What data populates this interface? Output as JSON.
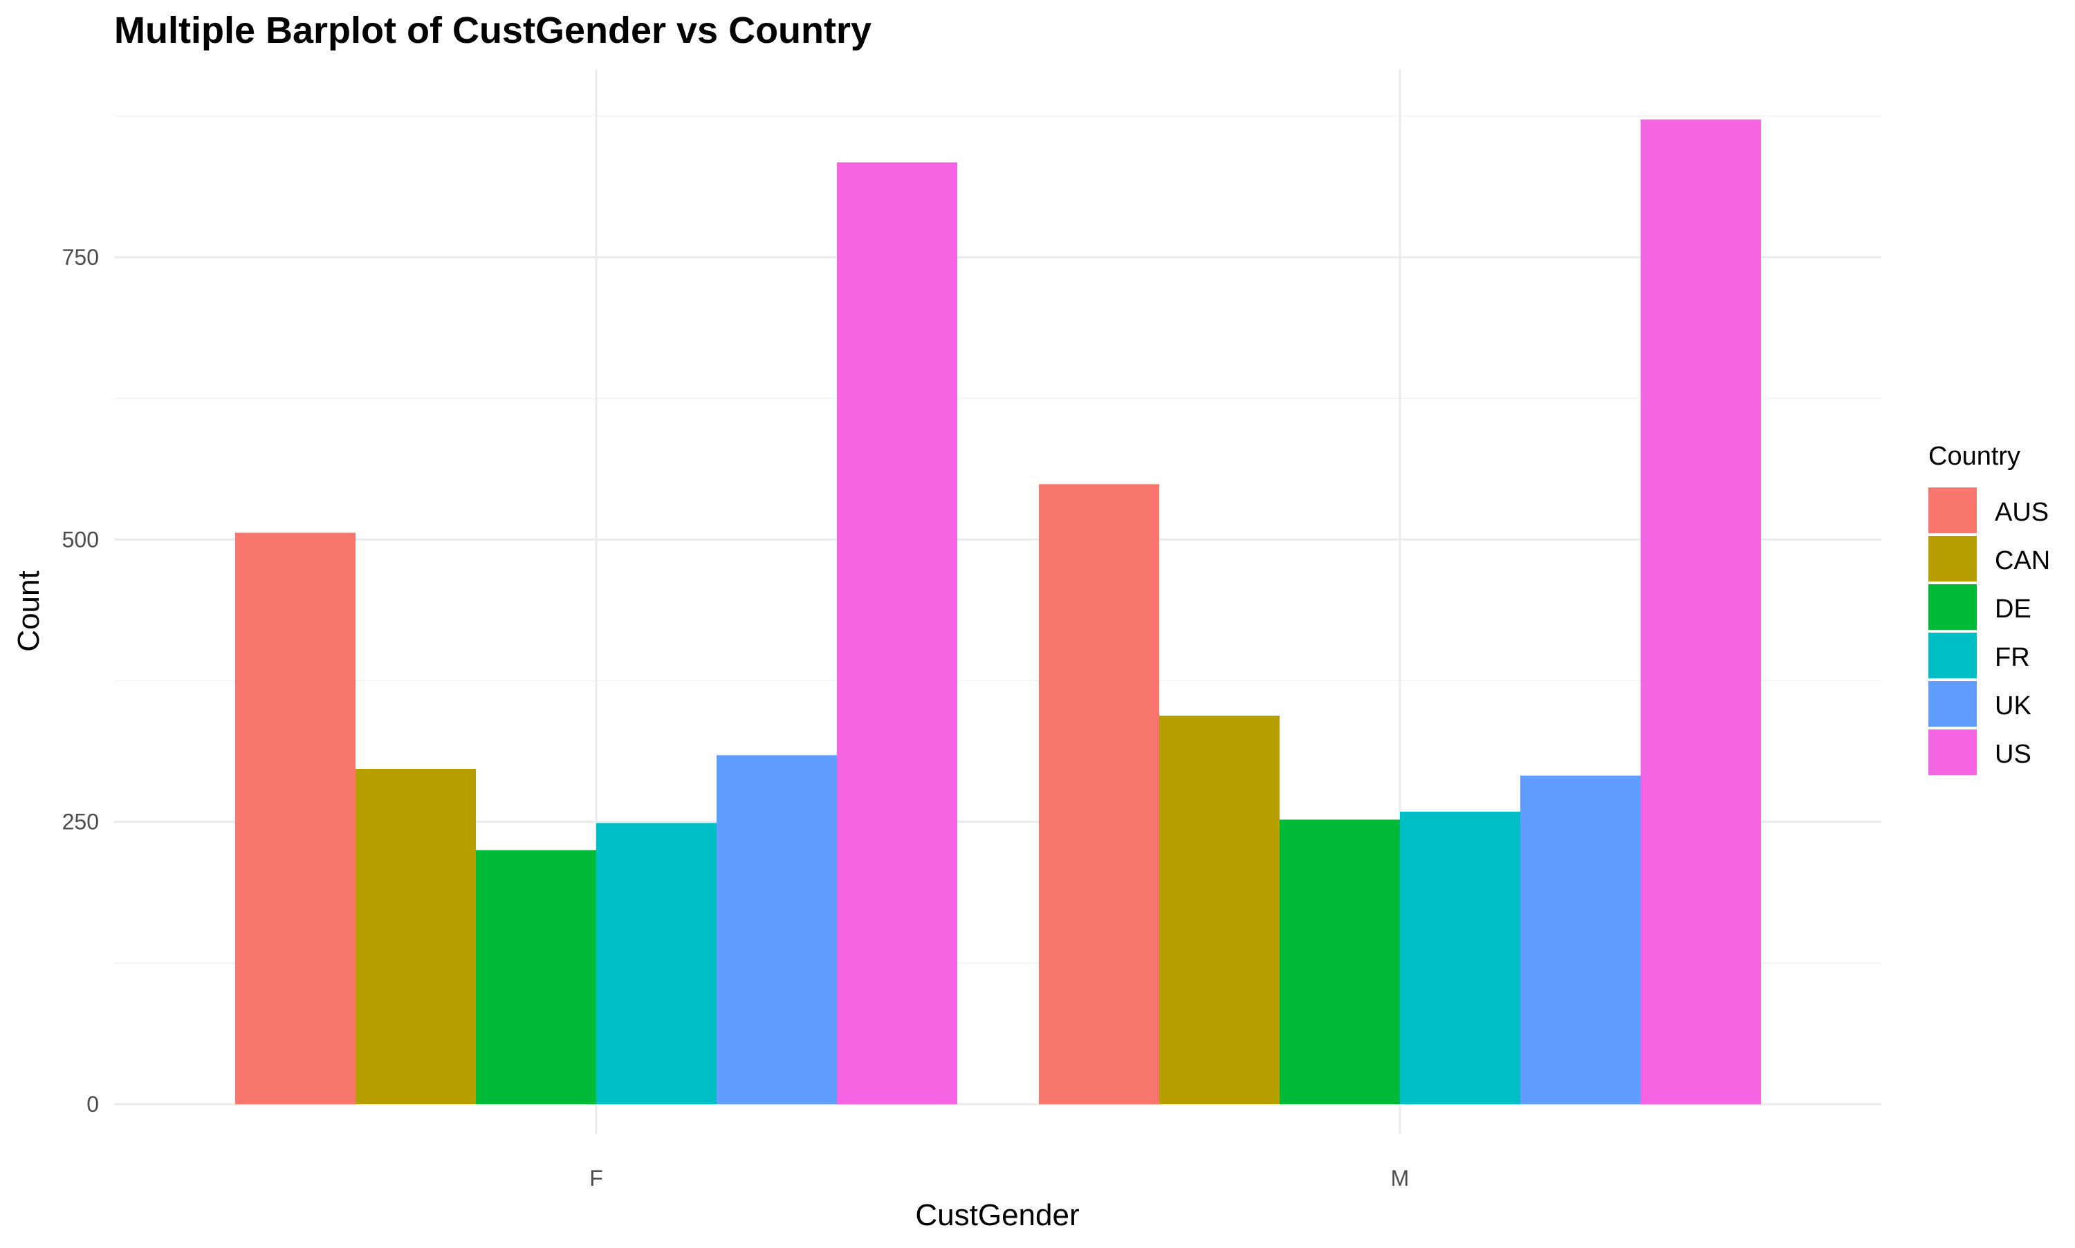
{
  "chart_data": {
    "type": "bar",
    "title": "Multiple Barplot of CustGender vs Country",
    "xlabel": "CustGender",
    "ylabel": "Count",
    "categories": [
      "F",
      "M"
    ],
    "ylim": [
      0,
      875
    ],
    "yticks": [
      0,
      250,
      500,
      750
    ],
    "ytick_labels": [
      "0",
      "250",
      "500",
      "750"
    ],
    "grid": true,
    "legend_title": "Country",
    "legend_position": "right",
    "series": [
      {
        "name": "AUS",
        "color": "#F8766D",
        "values": [
          506,
          549
        ]
      },
      {
        "name": "CAN",
        "color": "#B79F00",
        "values": [
          297,
          344
        ]
      },
      {
        "name": "DE",
        "color": "#00BA38",
        "values": [
          225,
          252
        ]
      },
      {
        "name": "FR",
        "color": "#00BFC4",
        "values": [
          249,
          259
        ]
      },
      {
        "name": "UK",
        "color": "#619CFF",
        "values": [
          309,
          291
        ]
      },
      {
        "name": "US",
        "color": "#F564E3",
        "values": [
          834,
          872
        ]
      }
    ]
  }
}
